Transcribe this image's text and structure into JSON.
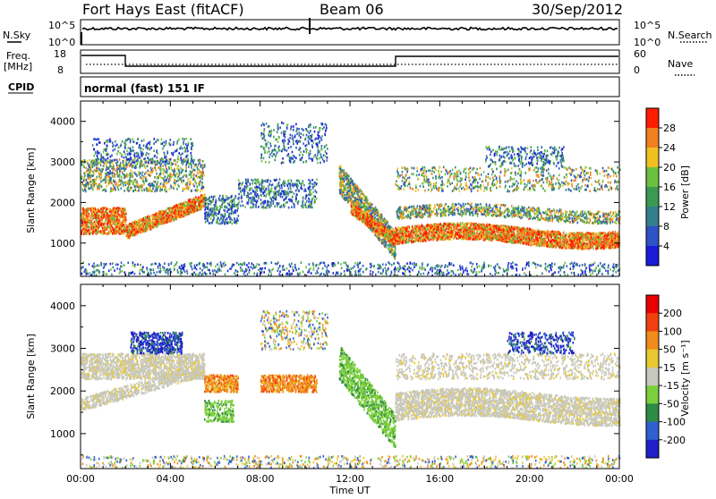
{
  "header": {
    "station": "Fort Hays East (fitACF)",
    "beam": "Beam 06",
    "date": "30/Sep/2012"
  },
  "strip_noise": {
    "left_label": "N.Sky",
    "right_label": "N.Search",
    "ticks_left": [
      "10^5",
      "10^0"
    ],
    "ticks_right": [
      "10^5",
      "10^0"
    ]
  },
  "strip_freq": {
    "left_label_line1": "Freq.",
    "left_label_line2": "[MHz]",
    "right_label": "Nave",
    "ticks_left": [
      "18",
      "8"
    ],
    "ticks_right": [
      "60",
      "0"
    ],
    "cpid_label": "CPID",
    "cpid_text": "normal (fast) 151 IF"
  },
  "chart_data": [
    {
      "type": "heatmap",
      "variable": "Power",
      "ylabel": "Slant Range [km]",
      "ylim": [
        180,
        4500
      ],
      "y_ticks": [
        "4000",
        "3000",
        "2000",
        "1000"
      ],
      "xlim_hours": [
        0,
        24
      ],
      "colorbar": {
        "label": "Power [dB]",
        "ticks": [
          "28",
          "24",
          "20",
          "16",
          "12",
          "8",
          "4"
        ],
        "colors": [
          "#1a1ad8",
          "#2f52c4",
          "#337f8e",
          "#3a9a52",
          "#6cc040",
          "#f0c020",
          "#f08020",
          "#ff1c00"
        ]
      }
    },
    {
      "type": "heatmap",
      "variable": "Velocity",
      "ylabel": "Slant Range [km]",
      "ylim": [
        180,
        4500
      ],
      "y_ticks": [
        "4000",
        "3000",
        "2000",
        "1000"
      ],
      "xlim_hours": [
        0,
        24
      ],
      "colorbar": {
        "label": "Velocity [m s⁻¹]",
        "ticks": [
          "200",
          "100",
          "50",
          "15",
          "-15",
          "-50",
          "-100",
          "-200"
        ],
        "colors": [
          "#2020c8",
          "#3060d0",
          "#2e8b45",
          "#7ccf3c",
          "#c8c8bc",
          "#e8c830",
          "#f08c1c",
          "#f04010",
          "#e80000"
        ]
      }
    }
  ],
  "x_axis": {
    "ticks": [
      "00:00",
      "04:00",
      "08:00",
      "12:00",
      "16:00",
      "20:00",
      "00:00"
    ],
    "label": "Time UT"
  }
}
